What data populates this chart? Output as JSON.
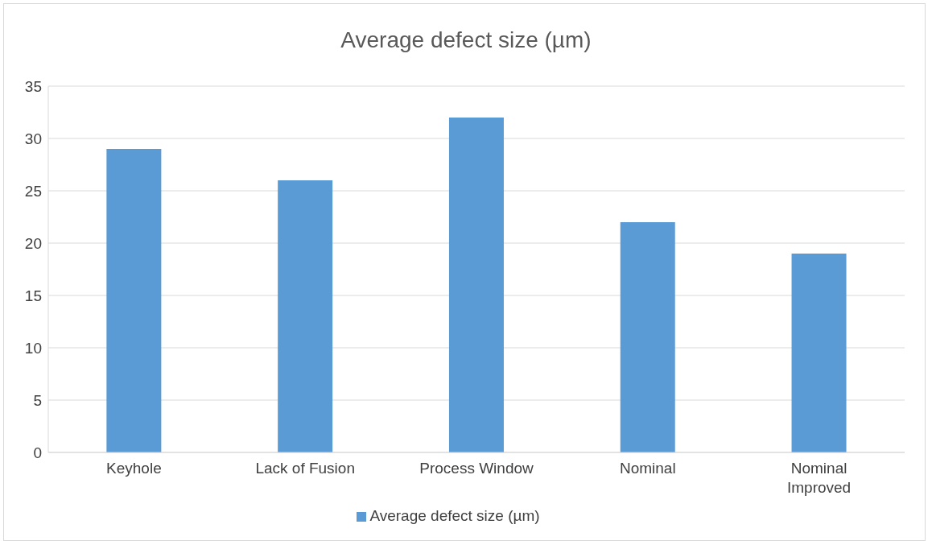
{
  "chart_data": {
    "type": "bar",
    "title": "Average defect size (µm)",
    "categories": [
      "Keyhole",
      "Lack of Fusion",
      "Process Window",
      "Nominal",
      "Nominal Improved"
    ],
    "series": [
      {
        "name": "Average defect size (µm)",
        "color": "#5b9bd5",
        "values": [
          29,
          26,
          32,
          22,
          19
        ]
      }
    ],
    "ylim": [
      0,
      35
    ],
    "yticks": [
      0,
      5,
      10,
      15,
      20,
      25,
      30,
      35
    ],
    "grid": "y",
    "legend": "bottom"
  }
}
